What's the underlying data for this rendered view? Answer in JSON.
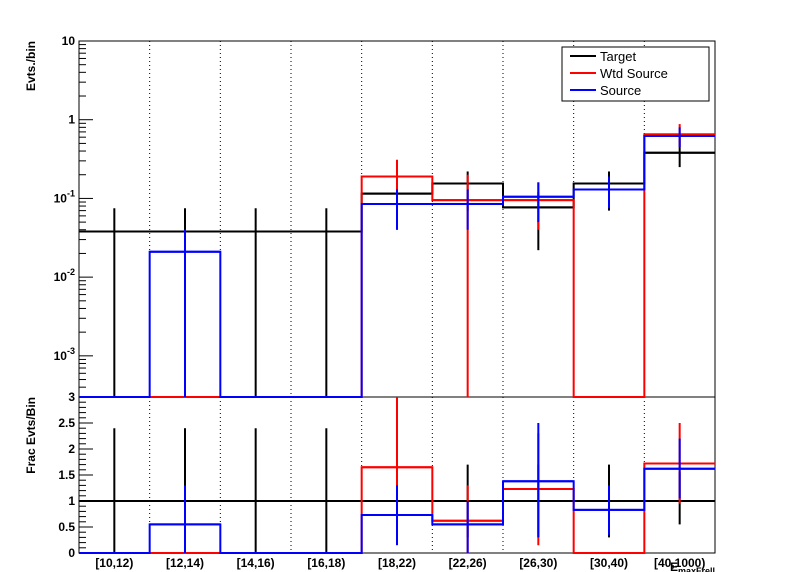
{
  "chart_data": [
    {
      "type": "step-histogram",
      "panel": "top",
      "ylabel": "Evts./bin",
      "log_y": true,
      "ylim": [
        0.0003,
        10
      ],
      "y_ticks": [
        {
          "value": 10,
          "base": "10",
          "exp": ""
        },
        {
          "value": 1,
          "base": "1",
          "exp": ""
        },
        {
          "value": 0.1,
          "base": "10",
          "exp": "-1"
        },
        {
          "value": 0.01,
          "base": "10",
          "exp": "-2"
        },
        {
          "value": 0.001,
          "base": "10",
          "exp": "-3"
        }
      ],
      "categories": [
        "[10,12)",
        "[12,14)",
        "[14,16)",
        "[16,18)",
        "[18,22)",
        "[22,26)",
        "[26,30)",
        "[30,40)",
        "[40,1000)"
      ],
      "series": [
        {
          "name": "Target",
          "color": "#000000",
          "values": [
            0.038,
            0.038,
            0.038,
            0.038,
            0.115,
            0.155,
            0.077,
            0.155,
            0.38
          ],
          "err_lo": [
            0.0003,
            0.0003,
            0.0003,
            0.0003,
            0.04,
            0.07,
            0.022,
            0.07,
            0.25
          ],
          "err_hi": [
            0.075,
            0.075,
            0.075,
            0.075,
            0.22,
            0.22,
            0.12,
            0.22,
            0.6
          ]
        },
        {
          "name": "Wtd Source",
          "color": "#ff0000",
          "values": [
            0,
            0,
            0,
            0,
            0.19,
            0.095,
            0.095,
            0,
            0.65
          ],
          "err_lo": [
            0,
            0,
            0,
            0,
            0.1,
            0.0003,
            0.04,
            0,
            0.45
          ],
          "err_hi": [
            0,
            0,
            0,
            0,
            0.31,
            0.2,
            0.16,
            0,
            0.88
          ]
        },
        {
          "name": "Source",
          "color": "#0000ff",
          "values": [
            0,
            0.021,
            0,
            0,
            0.085,
            0.085,
            0.105,
            0.13,
            0.62
          ],
          "err_lo": [
            0,
            0.0003,
            0,
            0,
            0.04,
            0.04,
            0.05,
            0.075,
            0.45
          ],
          "err_hi": [
            0,
            0.04,
            0,
            0,
            0.13,
            0.13,
            0.16,
            0.19,
            0.8
          ]
        }
      ],
      "legend": {
        "position": "top-right",
        "entries": [
          "Target",
          "Wtd Source",
          "Source"
        ]
      }
    },
    {
      "type": "step-histogram",
      "panel": "bottom",
      "ylabel": "Frac Evts/Bin",
      "xlabel": "E_maxFrell",
      "ylim": [
        0,
        3
      ],
      "y_ticks": [
        "0",
        "0.5",
        "1",
        "1.5",
        "2",
        "2.5",
        "3"
      ],
      "reference_line": 1,
      "categories": [
        "[10,12)",
        "[12,14)",
        "[14,16)",
        "[16,18)",
        "[18,22)",
        "[22,26)",
        "[26,30)",
        "[30,40)",
        "[40,1000)"
      ],
      "series": [
        {
          "name": "Target",
          "color": "#000000",
          "values": [
            1,
            1,
            1,
            1,
            1,
            1,
            1,
            1,
            1
          ],
          "err_lo": [
            0,
            0,
            0,
            0,
            0.3,
            0.3,
            0.3,
            0.3,
            0.55
          ],
          "err_hi": [
            2.4,
            2.4,
            2.4,
            2.4,
            1.7,
            1.7,
            1.7,
            1.7,
            1.55
          ]
        },
        {
          "name": "Wtd Source",
          "color": "#ff0000",
          "values": [
            0,
            0,
            0,
            0,
            1.65,
            0.62,
            1.23,
            0,
            1.72
          ],
          "err_lo": [
            0,
            0,
            0,
            0,
            0.6,
            0,
            0.15,
            0,
            0.95
          ],
          "err_hi": [
            0,
            0,
            0,
            0,
            3.0,
            1.3,
            2.3,
            0,
            2.5
          ]
        },
        {
          "name": "Source",
          "color": "#0000ff",
          "values": [
            0,
            0.55,
            0,
            0,
            0.73,
            0.55,
            1.38,
            0.83,
            1.62
          ],
          "err_lo": [
            0,
            0,
            0,
            0,
            0.15,
            0,
            0.3,
            0.35,
            1.05
          ],
          "err_hi": [
            0,
            1.3,
            0,
            0,
            1.3,
            1.0,
            2.5,
            1.3,
            2.2
          ]
        }
      ]
    }
  ]
}
